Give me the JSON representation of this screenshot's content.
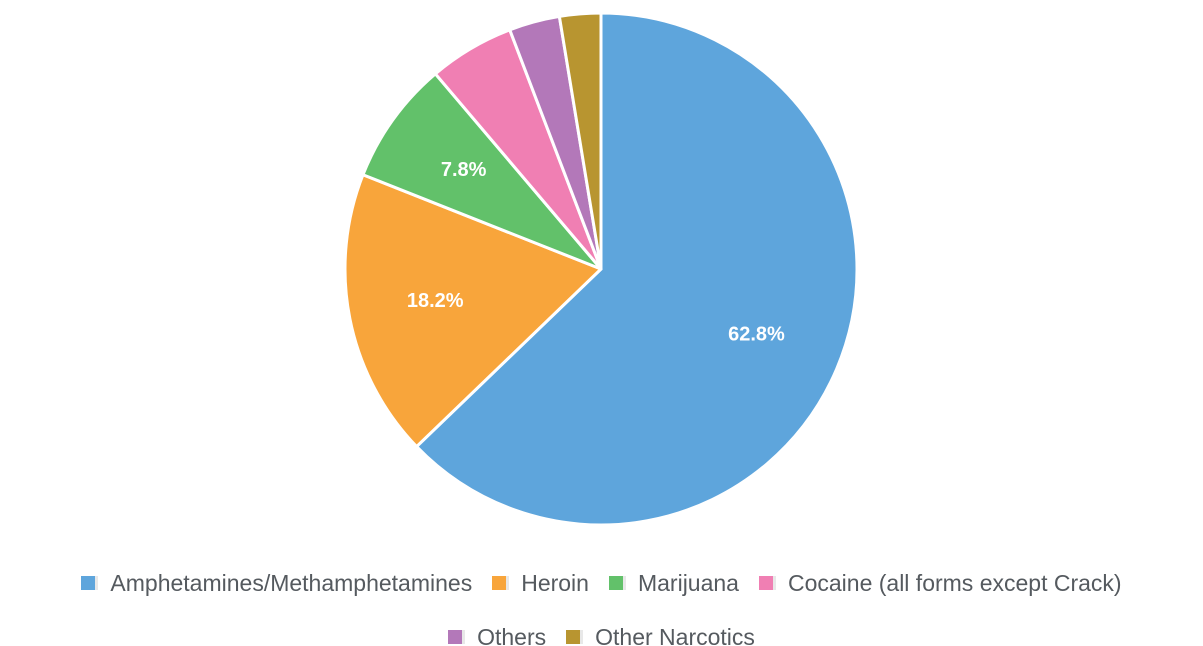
{
  "chart_data": {
    "type": "pie",
    "categories": [
      "Amphetamines/Methamphetamines",
      "Heroin",
      "Marijuana",
      "Cocaine (all forms except Crack)",
      "Others",
      "Other Narcotics"
    ],
    "values": [
      62.8,
      18.2,
      7.8,
      5.4,
      3.2,
      2.6
    ],
    "data_labels": [
      "62.8%",
      "18.2%",
      "7.8%",
      "",
      "",
      ""
    ],
    "colors": [
      "#5ea5dc",
      "#f8a53b",
      "#62c16a",
      "#f07fb3",
      "#b378b9",
      "#b89530"
    ],
    "start_angle": "12 o'clock, clockwise",
    "legend_position": "bottom"
  }
}
